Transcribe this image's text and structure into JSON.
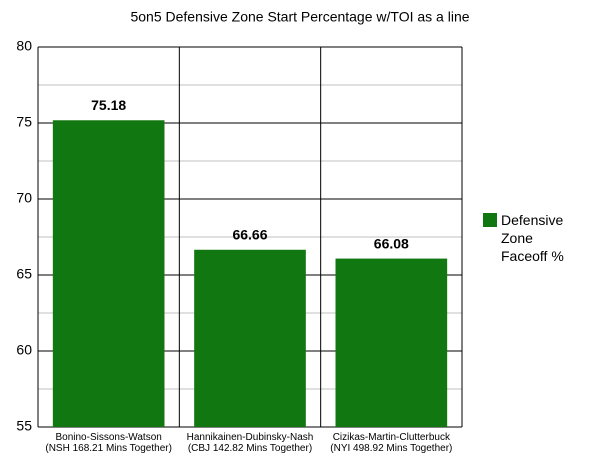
{
  "chart_data": {
    "type": "bar",
    "title": "5on5 Defensive Zone Start Percentage w/TOI as a line",
    "categories": [
      "Bonino-Sissons-Watson\n(NSH 168.21 Mins Together)",
      "Hannikainen-Dubinsky-Nash\n(CBJ 142.82 Mins Together)",
      "Cizikas-Martin-Clutterbuck\n(NYI 498.92 Mins Together)"
    ],
    "series": [
      {
        "name": "Defensive Zone Faceoff %",
        "color": "#117711",
        "values": [
          75.18,
          66.66,
          66.08
        ]
      }
    ],
    "ylim": [
      55,
      80
    ],
    "yticks": [
      55,
      60,
      65,
      70,
      75,
      80
    ],
    "minor_yticks": [
      57.5,
      62.5,
      67.5,
      72.5,
      77.5
    ],
    "grid": true,
    "legend": "right"
  }
}
